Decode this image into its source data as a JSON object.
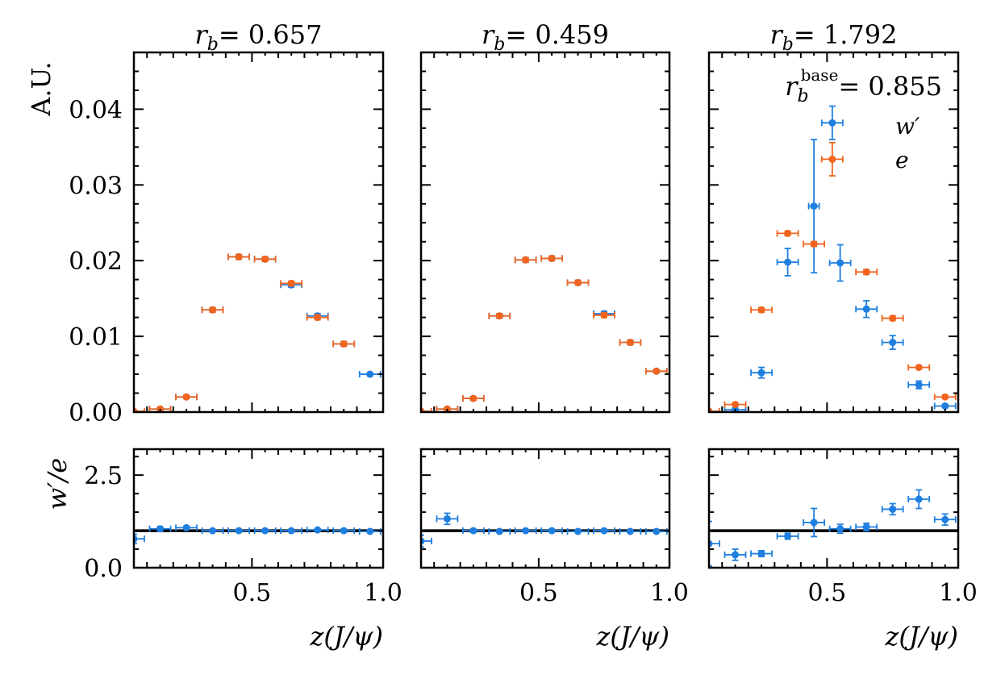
{
  "chart_data": {
    "type": "scatter",
    "xlabel": "z(J/ψ)",
    "ylabel_main": "A.U.",
    "ylabel_ratio": "w′/e",
    "main_ylim": [
      0,
      0.0475
    ],
    "ratio_ylim": [
      0,
      3.2
    ],
    "xlim": [
      0.05,
      1.0
    ],
    "x_ticks": [
      "0.5",
      "1.0"
    ],
    "main_y_ticks": [
      "0.00",
      "0.01",
      "0.02",
      "0.03",
      "0.04"
    ],
    "ratio_y_ticks": [
      "0.0",
      "2.5"
    ],
    "ratio_reference_line": 1.0,
    "legend_placement": "top-right",
    "base_annotation": {
      "symbol": "r",
      "subscript": "b",
      "superscript": "base",
      "value": "= 0.855"
    },
    "colors": {
      "w_prime": "#1f7fe0",
      "e": "#f0641e"
    },
    "series_names": {
      "w_prime": "w′",
      "e": "e"
    },
    "panels": [
      {
        "title_symbol": "r",
        "title_subscript": "b",
        "title_value": "= 0.657",
        "main": {
          "w_prime": {
            "x": [
              0.15,
              0.25,
              0.35,
              0.45,
              0.55,
              0.65,
              0.75,
              0.85,
              0.95
            ],
            "y": [
              0.0004,
              0.002,
              0.0135,
              0.0205,
              0.0202,
              0.0168,
              0.0127,
              0.009,
              0.005
            ],
            "xerr": [
              0.04,
              0.04,
              0.04,
              0.04,
              0.04,
              0.04,
              0.04,
              0.04,
              0.04
            ],
            "yerr": [
              0.0001,
              0.0002,
              0.0003,
              0.0003,
              0.0003,
              0.0003,
              0.0003,
              0.0003,
              0.0002
            ]
          },
          "e": {
            "x": [
              0.05,
              0.15,
              0.25,
              0.35,
              0.45,
              0.55,
              0.65,
              0.75,
              0.85
            ],
            "y": [
              0.0001,
              0.0004,
              0.002,
              0.0135,
              0.0205,
              0.0202,
              0.017,
              0.0125,
              0.009
            ],
            "xerr": [
              0.04,
              0.04,
              0.04,
              0.04,
              0.04,
              0.04,
              0.04,
              0.04,
              0.04
            ],
            "yerr": [
              0.0001,
              0.0001,
              0.0002,
              0.0003,
              0.0003,
              0.0003,
              0.0003,
              0.0003,
              0.0003
            ]
          }
        },
        "ratio": {
          "x": [
            0.05,
            0.15,
            0.25,
            0.35,
            0.45,
            0.55,
            0.65,
            0.75,
            0.85,
            0.95
          ],
          "y": [
            0.78,
            1.05,
            1.08,
            1.0,
            1.0,
            1.0,
            1.0,
            1.02,
            1.0,
            0.98
          ],
          "xerr": [
            0.04,
            0.04,
            0.04,
            0.04,
            0.04,
            0.04,
            0.04,
            0.04,
            0.04,
            0.04
          ],
          "yerr": [
            0.12,
            0.06,
            0.04,
            0.02,
            0.02,
            0.02,
            0.02,
            0.03,
            0.03,
            0.03
          ]
        }
      },
      {
        "title_symbol": "r",
        "title_subscript": "b",
        "title_value": "= 0.459",
        "main": {
          "w_prime": {
            "x": [
              0.15,
              0.25,
              0.35,
              0.45,
              0.55,
              0.65,
              0.75,
              0.85,
              0.95
            ],
            "y": [
              0.0004,
              0.0018,
              0.0127,
              0.0201,
              0.0203,
              0.0171,
              0.013,
              0.0092,
              0.0054
            ],
            "xerr": [
              0.04,
              0.04,
              0.04,
              0.04,
              0.04,
              0.04,
              0.04,
              0.04,
              0.04
            ],
            "yerr": [
              0.0001,
              0.0002,
              0.0003,
              0.0003,
              0.0003,
              0.0003,
              0.0003,
              0.0003,
              0.0002
            ]
          },
          "e": {
            "x": [
              0.05,
              0.15,
              0.25,
              0.35,
              0.45,
              0.55,
              0.65,
              0.75,
              0.85,
              0.95
            ],
            "y": [
              0.0001,
              0.0004,
              0.0018,
              0.0127,
              0.0201,
              0.0203,
              0.0171,
              0.0128,
              0.0092,
              0.0054
            ],
            "xerr": [
              0.04,
              0.04,
              0.04,
              0.04,
              0.04,
              0.04,
              0.04,
              0.04,
              0.04,
              0.04
            ],
            "yerr": [
              0.0001,
              0.0001,
              0.0002,
              0.0003,
              0.0003,
              0.0003,
              0.0003,
              0.0003,
              0.0003,
              0.0002
            ]
          }
        },
        "ratio": {
          "x": [
            0.05,
            0.15,
            0.25,
            0.35,
            0.45,
            0.55,
            0.65,
            0.75,
            0.85,
            0.95
          ],
          "y": [
            0.72,
            1.32,
            1.0,
            0.98,
            1.0,
            1.0,
            0.98,
            1.0,
            0.98,
            0.98
          ],
          "xerr": [
            0.04,
            0.04,
            0.04,
            0.04,
            0.04,
            0.04,
            0.04,
            0.04,
            0.04,
            0.04
          ],
          "yerr": [
            0.16,
            0.15,
            0.04,
            0.02,
            0.02,
            0.02,
            0.02,
            0.03,
            0.03,
            0.03
          ]
        }
      },
      {
        "title_symbol": "r",
        "title_subscript": "b",
        "title_value": "= 1.792",
        "main": {
          "w_prime": {
            "x": [
              0.15,
              0.25,
              0.35,
              0.45,
              0.52,
              0.55,
              0.65,
              0.75,
              0.85,
              0.95
            ],
            "y": [
              0.0003,
              0.0052,
              0.0198,
              0.0272,
              0.0382,
              0.0197,
              0.0136,
              0.0092,
              0.0036,
              0.0008
            ],
            "xerr": [
              0.04,
              0.04,
              0.04,
              0.02,
              0.04,
              0.04,
              0.04,
              0.04,
              0.04,
              0.04
            ],
            "yerr": [
              0.0002,
              0.0007,
              0.0018,
              0.0088,
              0.0022,
              0.0024,
              0.0011,
              0.0009,
              0.0005,
              0.0002
            ]
          },
          "e": {
            "x": [
              0.05,
              0.15,
              0.25,
              0.35,
              0.45,
              0.52,
              0.65,
              0.75,
              0.85,
              0.95
            ],
            "y": [
              0.0001,
              0.001,
              0.0135,
              0.0236,
              0.0222,
              0.0334,
              0.0185,
              0.0124,
              0.0059,
              0.002
            ],
            "xerr": [
              0.04,
              0.04,
              0.04,
              0.04,
              0.04,
              0.04,
              0.04,
              0.04,
              0.04,
              0.04
            ],
            "yerr": [
              0.0001,
              0.0002,
              0.0003,
              0.0003,
              0.0003,
              0.0022,
              0.0003,
              0.0003,
              0.0002,
              0.0002
            ]
          }
        },
        "ratio": {
          "x": [
            0.05,
            0.15,
            0.25,
            0.35,
            0.45,
            0.55,
            0.65,
            0.75,
            0.85,
            0.95
          ],
          "y": [
            0.65,
            0.35,
            0.38,
            0.85,
            1.22,
            1.05,
            1.1,
            1.58,
            1.85,
            1.3
          ],
          "xerr": [
            0.04,
            0.04,
            0.04,
            0.04,
            0.04,
            0.04,
            0.04,
            0.04,
            0.04,
            0.04
          ],
          "yerr": [
            0.6,
            0.15,
            0.08,
            0.08,
            0.38,
            0.12,
            0.1,
            0.15,
            0.25,
            0.15
          ]
        }
      }
    ]
  }
}
